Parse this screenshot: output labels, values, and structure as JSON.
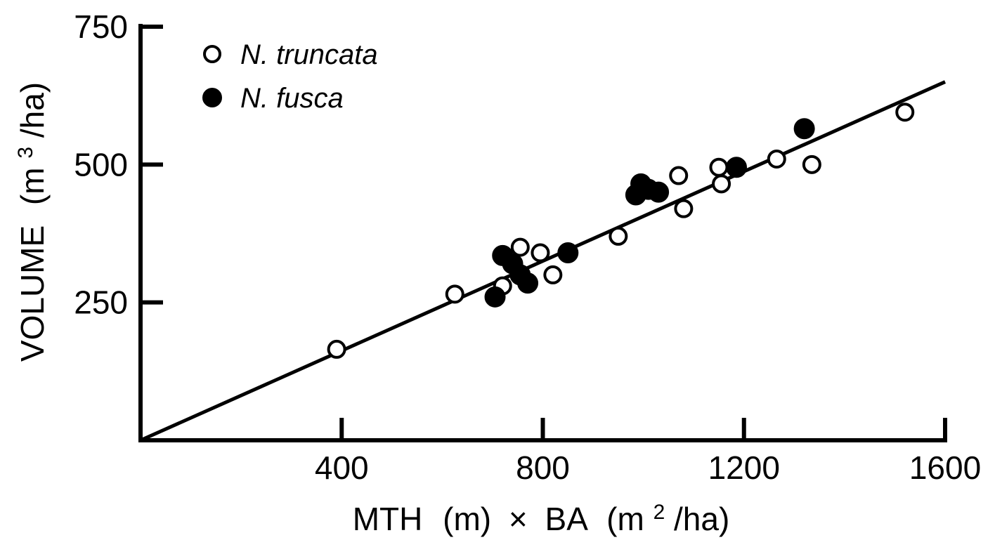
{
  "chart_data": {
    "type": "scatter",
    "title": "",
    "x_axis": {
      "label_parts": [
        "MTH",
        "(m)",
        "×",
        "BA",
        "(m",
        "2",
        "/ha)"
      ],
      "ticks": [
        400,
        800,
        1200,
        1600
      ],
      "tick_labels": [
        "400",
        "800",
        "1200",
        "1600"
      ],
      "range": [
        0,
        1600
      ]
    },
    "y_axis": {
      "label_parts": [
        "VOLUME",
        "(m",
        "3",
        "/ha)"
      ],
      "ticks": [
        250,
        500,
        750
      ],
      "tick_labels": [
        "250",
        "500",
        "750"
      ],
      "range": [
        0,
        750
      ]
    },
    "legend_position": "top-left",
    "series": [
      {
        "name": "N. truncata",
        "marker": "open-circle",
        "points": [
          {
            "x": 390,
            "y": 165
          },
          {
            "x": 625,
            "y": 265
          },
          {
            "x": 720,
            "y": 280
          },
          {
            "x": 755,
            "y": 350
          },
          {
            "x": 795,
            "y": 340
          },
          {
            "x": 820,
            "y": 300
          },
          {
            "x": 950,
            "y": 370
          },
          {
            "x": 1070,
            "y": 480
          },
          {
            "x": 1080,
            "y": 420
          },
          {
            "x": 1150,
            "y": 495
          },
          {
            "x": 1155,
            "y": 465
          },
          {
            "x": 1265,
            "y": 510
          },
          {
            "x": 1335,
            "y": 500
          },
          {
            "x": 1520,
            "y": 595
          }
        ]
      },
      {
        "name": "N. fusca",
        "marker": "filled-circle",
        "points": [
          {
            "x": 705,
            "y": 260
          },
          {
            "x": 720,
            "y": 335
          },
          {
            "x": 740,
            "y": 320
          },
          {
            "x": 755,
            "y": 300
          },
          {
            "x": 770,
            "y": 285
          },
          {
            "x": 850,
            "y": 340
          },
          {
            "x": 985,
            "y": 445
          },
          {
            "x": 995,
            "y": 465
          },
          {
            "x": 1010,
            "y": 455
          },
          {
            "x": 1030,
            "y": 450
          },
          {
            "x": 1185,
            "y": 495
          },
          {
            "x": 1320,
            "y": 565
          }
        ]
      }
    ],
    "regression_line": {
      "x": [
        0,
        1600
      ],
      "y": [
        0,
        650
      ]
    }
  }
}
